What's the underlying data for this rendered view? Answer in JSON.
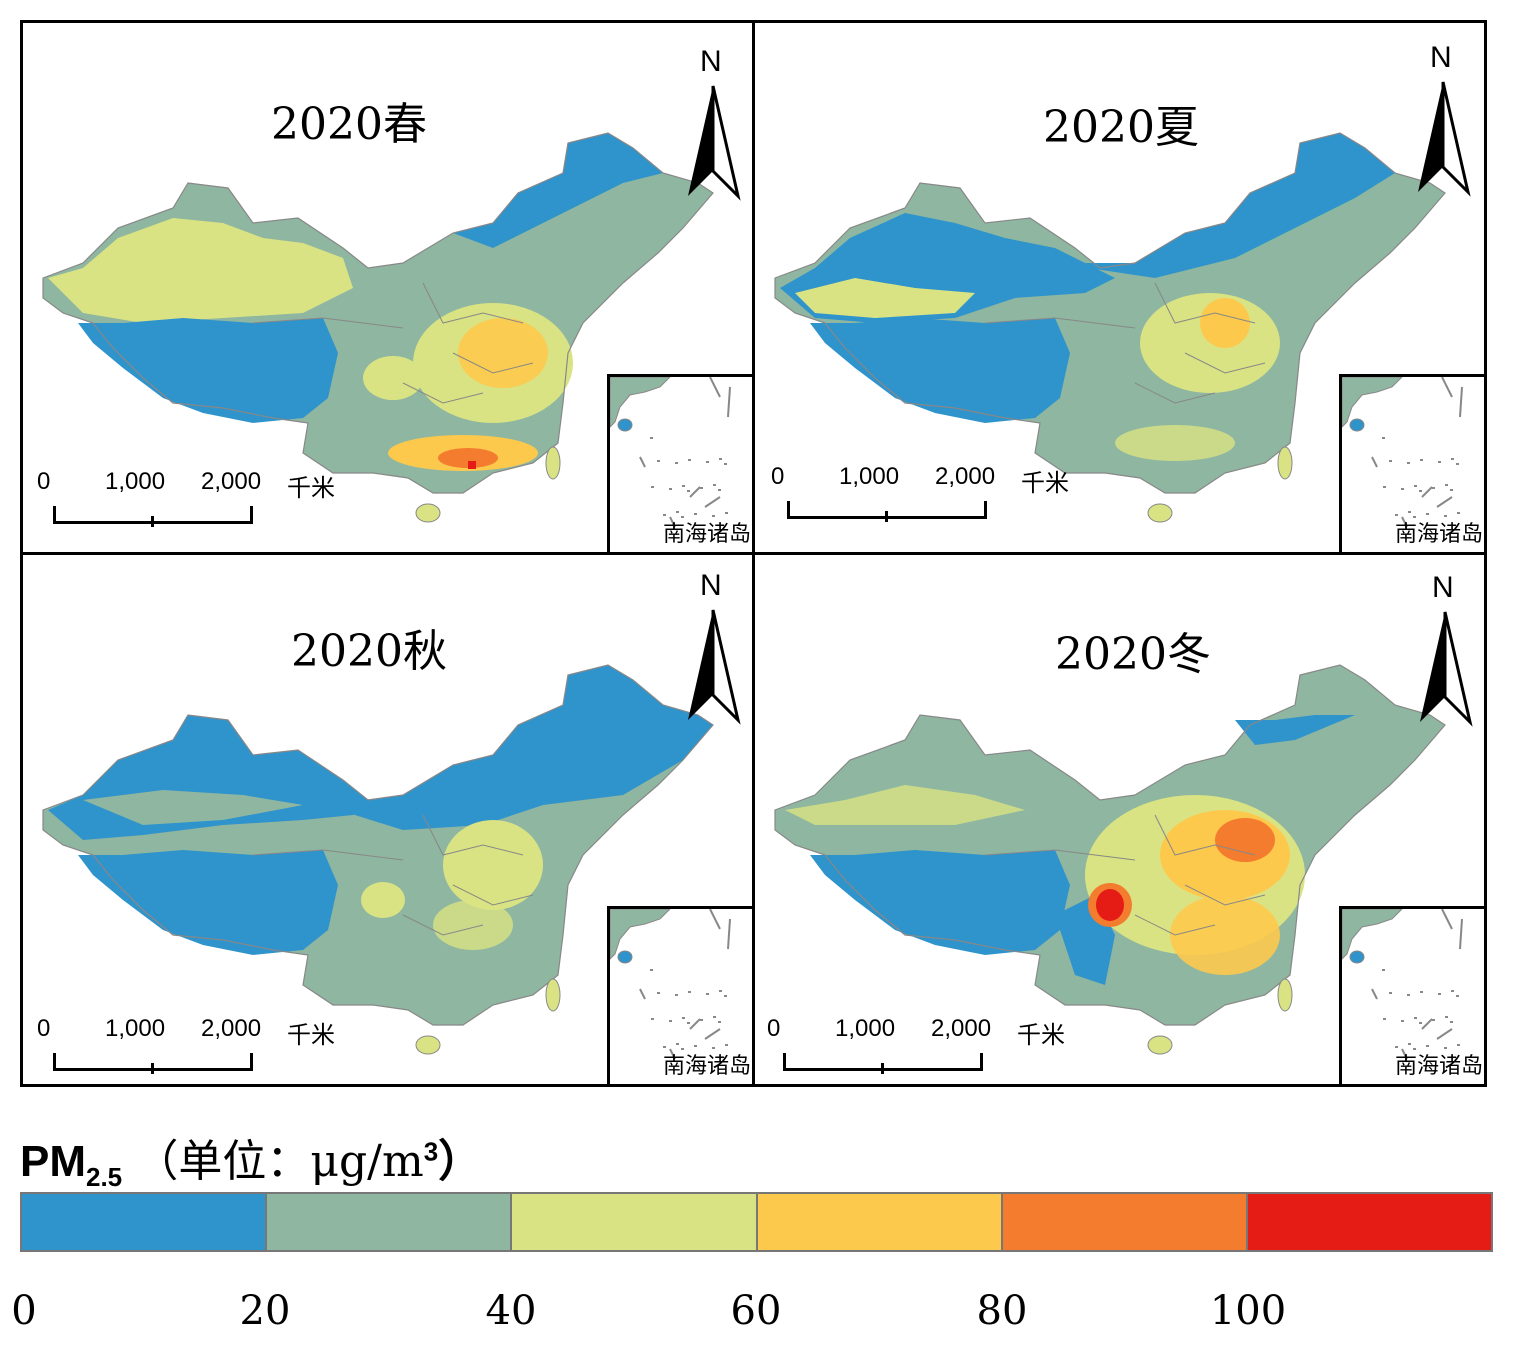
{
  "panels": [
    {
      "title": "2020春",
      "north": "N",
      "scale": {
        "l0": "0",
        "l1": "1,000",
        "l2": "2,000",
        "unit": "千米"
      },
      "inset_label": "南海诸岛"
    },
    {
      "title": "2020夏",
      "north": "N",
      "scale": {
        "l0": "0",
        "l1": "1,000",
        "l2": "2,000",
        "unit": "千米"
      },
      "inset_label": "南海诸岛"
    },
    {
      "title": "2020秋",
      "north": "N",
      "scale": {
        "l0": "0",
        "l1": "1,000",
        "l2": "2,000",
        "unit": "千米"
      },
      "inset_label": "南海诸岛"
    },
    {
      "title": "2020冬",
      "north": "N",
      "scale": {
        "l0": "0",
        "l1": "1,000",
        "l2": "2,000",
        "unit": "千米"
      },
      "inset_label": "南海诸岛"
    }
  ],
  "legend": {
    "title_main": "PM",
    "title_sub": "2.5",
    "title_unit_prefix": "（单位：μg/m",
    "title_unit_sup": "3",
    "title_unit_suffix": "）",
    "colors": [
      "#2f93cc",
      "#8eb6a0",
      "#d9e383",
      "#fdc94c",
      "#f47c2f",
      "#e51b16"
    ],
    "ticks": [
      "0",
      "20",
      "40",
      "60",
      "80",
      "100"
    ]
  },
  "palette": {
    "c0": "#2f93cc",
    "c1": "#8eb6a0",
    "c2": "#d9e383",
    "c3": "#fdc94c",
    "c4": "#f47c2f",
    "c5": "#e51b16",
    "boundary": "#888888"
  }
}
